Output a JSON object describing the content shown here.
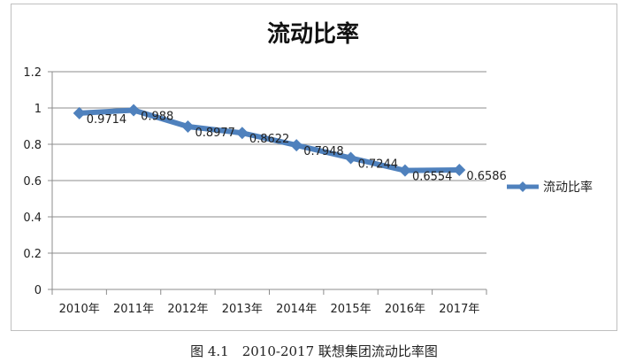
{
  "caption": "图 4.1　2010-2017 联想集团流动比率图",
  "chart_data": {
    "type": "line",
    "title": "流动比率",
    "xlabel": "",
    "ylabel": "",
    "categories": [
      "2010年",
      "2011年",
      "2012年",
      "2013年",
      "2014年",
      "2015年",
      "2016年",
      "2017年"
    ],
    "series": [
      {
        "name": "流动比率",
        "values": [
          0.9714,
          0.988,
          0.8977,
          0.8622,
          0.7948,
          0.7244,
          0.6554,
          0.6586
        ],
        "value_labels": [
          "0.9714",
          "0.988",
          "0.8977",
          "0.8622",
          "0.7948",
          "0.7244",
          "0.6554",
          "0.6586"
        ],
        "color": "#4f81bd",
        "marker": "diamond"
      }
    ],
    "ylim": [
      0,
      1.2
    ],
    "yticks": [
      0,
      0.2,
      0.4,
      0.6,
      0.8,
      1,
      1.2
    ],
    "ytick_labels": [
      "0",
      "0.2",
      "0.4",
      "0.6",
      "0.8",
      "1",
      "1.2"
    ],
    "grid": true,
    "legend": "right"
  }
}
